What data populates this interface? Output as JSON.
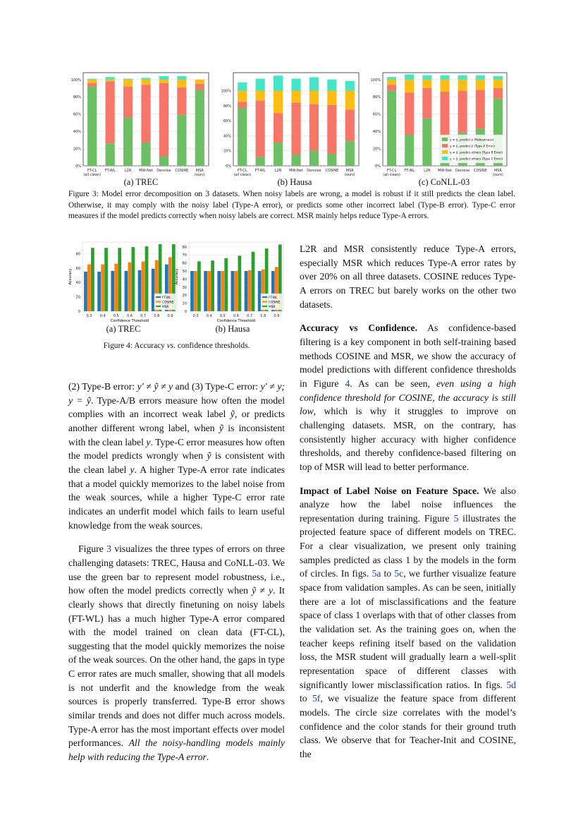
{
  "figure3": {
    "subcaptions": [
      "(a) TREC",
      "(b) Hausa",
      "(c) CoNLL-03"
    ],
    "caption": "Figure 3: Model error decomposition on 3 datasets. When noisy labels are wrong, a model is robust if it still predicts the clean label. Otherwise, it may comply with the noisy label (Type-A error), or predicts some other incorrect label (Type-B error). Type-C error measures if the model predicts correctly when noisy labels are correct. MSR mainly helps reduce Type-A errors."
  },
  "figure4": {
    "subcaptions": [
      "(a) TREC",
      "(b) Hausa"
    ],
    "caption_prefix": "Figure 4: Accuracy ",
    "caption_italic": "vs.",
    "caption_suffix": " confidence thresholds."
  },
  "chart_data": [
    {
      "type": "bar",
      "stacked": true,
      "title": "(a) TREC",
      "categories": [
        "FT-CL\n(all clean)",
        "FT-WL",
        "L2R",
        "MW-Net",
        "Denoise",
        "COSINE",
        "MSR\n(ours)"
      ],
      "yticks": [
        "0%",
        "20%",
        "40%",
        "60%",
        "80%",
        "100%"
      ],
      "ylim": [
        0,
        108
      ],
      "grid": true,
      "series": [
        {
          "name": "y ≠ ỹ, predict y (Robustness)",
          "color": "#6cbf63",
          "values": [
            92,
            26,
            56,
            27,
            11,
            59,
            88
          ]
        },
        {
          "name": "y ≠ ỹ, predict ỹ (Type A Error)",
          "color": "#f7766a",
          "values": [
            4,
            72,
            36,
            67,
            85,
            32,
            7
          ]
        },
        {
          "name": "y ≠ ỹ, predict others (Type B Error)",
          "color": "#ffbd14",
          "values": [
            4,
            2,
            8,
            6,
            4,
            9,
            5
          ]
        },
        {
          "name": "y = ỹ, predict others (Type C Error)",
          "color": "#45e6c8",
          "values": [
            1,
            3,
            1,
            2,
            4,
            4,
            0
          ]
        }
      ]
    },
    {
      "type": "bar",
      "stacked": true,
      "title": "(b) Hausa",
      "categories": [
        "FT-CL\n(all clean)",
        "FT-WL",
        "L2R",
        "MW-Net",
        "Denoise",
        "COSINE",
        "MSR\n(ours)"
      ],
      "yticks": [
        "0%",
        "20%",
        "40%",
        "60%",
        "80%",
        "100%"
      ],
      "ylim": [
        0,
        124
      ],
      "grid": true,
      "series": [
        {
          "name": "y ≠ ỹ, predict y (Robustness)",
          "color": "#6cbf63",
          "values": [
            77,
            12,
            31,
            15,
            20,
            16,
            33
          ]
        },
        {
          "name": "y ≠ ỹ, predict ỹ (Type A Error)",
          "color": "#f7766a",
          "values": [
            8,
            75,
            39,
            69,
            62,
            65,
            42
          ]
        },
        {
          "name": "y ≠ ỹ, predict others (Type B Error)",
          "color": "#ffbd14",
          "values": [
            15,
            13,
            30,
            16,
            18,
            19,
            25
          ]
        },
        {
          "name": "y = ỹ, predict others (Type C Error)",
          "color": "#45e6c8",
          "values": [
            11,
            16,
            20,
            16,
            18,
            15,
            13
          ]
        }
      ]
    },
    {
      "type": "bar",
      "stacked": true,
      "title": "(c) CoNLL-03",
      "legend": "bottom-right",
      "categories": [
        "FT-CL\n(all clean)",
        "FT-WL",
        "L2R",
        "MW-Net",
        "Denoise",
        "COSINE",
        "MSR\n(ours)"
      ],
      "yticks": [
        "0%",
        "20%",
        "40%",
        "60%",
        "80%",
        "100%"
      ],
      "ylim": [
        0,
        108
      ],
      "grid": true,
      "series": [
        {
          "name": "y ≠ ỹ, predict y (Robustness)",
          "color": "#6cbf63",
          "values": [
            87,
            36,
            55,
            35,
            39,
            43,
            78
          ]
        },
        {
          "name": "y ≠ ỹ, predict ỹ (Type A Error)",
          "color": "#f7766a",
          "values": [
            7,
            49,
            35,
            51,
            48,
            45,
            12
          ]
        },
        {
          "name": "y ≠ ỹ, predict others (Type B Error)",
          "color": "#ffbd14",
          "values": [
            6,
            15,
            10,
            14,
            13,
            12,
            10
          ]
        },
        {
          "name": "y = ỹ, predict others (Type C Error)",
          "color": "#45e6c8",
          "values": [
            3,
            6,
            5,
            5,
            5,
            5,
            4
          ]
        }
      ]
    },
    {
      "type": "bar",
      "stacked": false,
      "title": "(a) TREC",
      "xlabel": "Confidence Threshold",
      "ylabel": "Accuracy",
      "categories": [
        "0.3",
        "0.4",
        "0.5",
        "0.6",
        "0.7",
        "0.8",
        "0.9"
      ],
      "yticks": [
        "0",
        "20",
        "40",
        "60",
        "80"
      ],
      "ytick_values": [
        0,
        20,
        40,
        60,
        80
      ],
      "ylim": [
        0,
        96
      ],
      "legend": "bottom-right",
      "series": [
        {
          "name": "FT-WL",
          "color": "#1f77b4",
          "values": [
            55,
            55,
            56,
            56,
            57,
            59,
            65
          ]
        },
        {
          "name": "COSINE",
          "color": "#ff7f0e",
          "values": [
            65,
            65,
            66,
            68,
            69,
            71,
            75
          ]
        },
        {
          "name": "MSR",
          "color": "#2ca02c",
          "values": [
            88,
            88,
            88,
            89,
            90,
            93,
            93
          ]
        }
      ]
    },
    {
      "type": "bar",
      "stacked": false,
      "title": "(b) Hausa",
      "xlabel": "Confidence Threshold",
      "ylabel": "Accuracy",
      "categories": [
        "0.3",
        "0.4",
        "0.5",
        "0.6",
        "0.7",
        "0.8",
        "0.9"
      ],
      "yticks": [
        "0",
        "10",
        "20",
        "30",
        "40",
        "50",
        "60",
        "70",
        "80"
      ],
      "ytick_values": [
        0,
        10,
        20,
        30,
        40,
        50,
        60,
        70,
        80
      ],
      "ylim": [
        0,
        86
      ],
      "legend": "bottom-right",
      "series": [
        {
          "name": "FT-WL",
          "color": "#1f77b4",
          "values": [
            50,
            50,
            50,
            50,
            50,
            50,
            50
          ]
        },
        {
          "name": "COSINE",
          "color": "#ff7f0e",
          "values": [
            50,
            50,
            50,
            50,
            51,
            52,
            55
          ]
        },
        {
          "name": "MSR",
          "color": "#2ca02c",
          "values": [
            62,
            63,
            66,
            69,
            74,
            78,
            83
          ]
        }
      ]
    }
  ],
  "left_column": [
    {
      "indent": false,
      "segments": [
        {
          "t": "(2) Type-B error: "
        },
        {
          "t": "y′ ≠ ỹ ≠ y",
          "s": "i"
        },
        {
          "t": " and (3) Type-C error: "
        },
        {
          "t": "y′ ≠ y; y = ỹ",
          "s": "i"
        },
        {
          "t": ". Type-A/B errors measure how often the model complies with an incorrect weak label "
        },
        {
          "t": "ỹ",
          "s": "i"
        },
        {
          "t": ", or predicts another different wrong label, when "
        },
        {
          "t": "ỹ",
          "s": "i"
        },
        {
          "t": " is inconsistent with the clean label "
        },
        {
          "t": "y",
          "s": "i"
        },
        {
          "t": ". Type-C error measures how often the model predicts wrongly when "
        },
        {
          "t": "ỹ",
          "s": "i"
        },
        {
          "t": " is consistent with the clean label "
        },
        {
          "t": "y",
          "s": "i"
        },
        {
          "t": ". A higher Type-A error rate indicates that a model quickly memorizes to the label noise from the weak sources, while a higher Type-C error rate indicates an underfit model which fails to learn useful knowledge from the weak sources."
        }
      ]
    },
    {
      "indent": true,
      "segments": [
        {
          "t": "Figure "
        },
        {
          "t": "3",
          "s": "link"
        },
        {
          "t": " visualizes the three types of errors on three challenging datasets: TREC, Hausa and CoNLL-03. We use the green bar to represent model robustness, i.e., how often the model predicts correctly when "
        },
        {
          "t": "ỹ ≠ y",
          "s": "i"
        },
        {
          "t": ". It clearly shows that directly finetuning on noisy labels (FT-WL) has a much higher Type-A error compared with the model trained on clean data (FT-CL), suggesting that the model quickly memorizes the noise of the weak sources. On the other hand, the gaps in type C error rates are much smaller, showing that all models is not underfit and the knowledge from the weak sources is properly transferred. Type-B error shows similar trends and does not differ much across models. Type-A error has the most important effects over model performances. "
        },
        {
          "t": "All the noisy-handling models mainly help with reducing the Type-A error",
          "s": "i"
        },
        {
          "t": "."
        }
      ]
    }
  ],
  "right_column": [
    {
      "indent": false,
      "segments": [
        {
          "t": "L2R and MSR consistently reduce Type-A errors, especially MSR which reduces Type-A error rates by over 20% on all three datasets. COSINE reduces Type-A errors on TREC but barely works on the other two datasets."
        }
      ]
    },
    {
      "indent": false,
      "segments": [
        {
          "t": "Accuracy vs Confidence.",
          "s": "b"
        },
        {
          "t": "   As confidence-based filtering is a key component in both self-training based methods COSINE and MSR, we show the accuracy of model predictions with different confidence thresholds in Figure "
        },
        {
          "t": "4",
          "s": "link"
        },
        {
          "t": ". As can be seen, "
        },
        {
          "t": "even using a high confidence threshold for COSINE, the accuracy is still low",
          "s": "i"
        },
        {
          "t": ", which is why it struggles to improve on challenging datasets. MSR, on the contrary, has consistently higher accuracy with higher confidence thresholds, and thereby confidence-based filtering on top of MSR will lead to better performance."
        }
      ]
    },
    {
      "indent": false,
      "segments": [
        {
          "t": "Impact of Label Noise on Feature Space.",
          "s": "b"
        },
        {
          "t": "   We also analyze how the label noise influences the representation during training. Figure "
        },
        {
          "t": "5",
          "s": "link"
        },
        {
          "t": " illustrates the projected feature space of different models on TREC. For a clear visualization, we present only training samples predicted as class 1 by the models in the form of circles. In figs. "
        },
        {
          "t": "5a",
          "s": "link"
        },
        {
          "t": " to "
        },
        {
          "t": "5c",
          "s": "link"
        },
        {
          "t": ", we further visualize feature space from validation samples. As can be seen, initially there are a lot of misclassifications and the feature space of class 1 overlaps with that of other classes from the validation set. As the training goes on, when the teacher keeps refining itself based on the validation loss, the MSR student will gradually learn a well-split representation space of different classes with significantly lower misclassification ratios. In figs. "
        },
        {
          "t": "5d",
          "s": "link"
        },
        {
          "t": " to "
        },
        {
          "t": "5f",
          "s": "link"
        },
        {
          "t": ", we visualize the feature space from different models. The circle size correlates with the model’s confidence and the color stands for their ground truth class. We observe that for Teacher-Init and COSINE, the"
        }
      ]
    }
  ]
}
